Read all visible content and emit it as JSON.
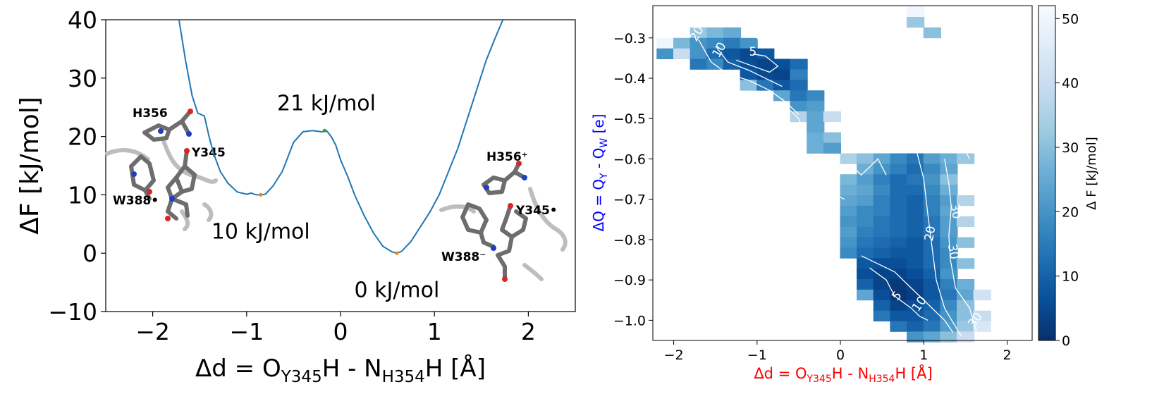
{
  "chart_data": [
    {
      "type": "line",
      "xlabel": {
        "main": "Δd = O",
        "sub1": "Y345",
        "mid": "H - N",
        "sub2": "H354",
        "end": "H [Å]"
      },
      "ylabel": "ΔF [kJ/mol]",
      "xlim": [
        -2.5,
        2.5
      ],
      "ylim": [
        -10,
        40
      ],
      "xticks": [
        -2,
        -1,
        0,
        1,
        2
      ],
      "yticks": [
        -10,
        0,
        10,
        20,
        30,
        40
      ],
      "xtick_labels": [
        "−2",
        "−1",
        "0",
        "1",
        "2"
      ],
      "ytick_labels": [
        "−10",
        "0",
        "10",
        "20",
        "30",
        "40"
      ],
      "line_color": "#1f77b4",
      "x": [
        -1.72,
        -1.65,
        -1.58,
        -1.52,
        -1.45,
        -1.4,
        -1.35,
        -1.28,
        -1.2,
        -1.1,
        -1.0,
        -0.95,
        -0.9,
        -0.85,
        -0.8,
        -0.72,
        -0.62,
        -0.5,
        -0.4,
        -0.3,
        -0.2,
        -0.15,
        -0.1,
        -0.05,
        0.0,
        0.08,
        0.15,
        0.25,
        0.35,
        0.45,
        0.55,
        0.6,
        0.65,
        0.75,
        0.85,
        0.95,
        1.05,
        1.15,
        1.25,
        1.35,
        1.45,
        1.55,
        1.65,
        1.73
      ],
      "y": [
        40,
        33,
        27,
        24,
        23.5,
        20,
        17,
        14,
        12,
        10.5,
        10.1,
        10.3,
        10.0,
        10.0,
        10.1,
        11.5,
        14,
        19,
        20.8,
        21,
        20.8,
        21.0,
        20,
        18.5,
        16,
        13,
        10,
        6.5,
        3.5,
        1.2,
        0.2,
        0.0,
        0.3,
        2,
        4.5,
        7,
        10,
        14,
        18,
        23,
        28,
        33,
        37,
        40
      ],
      "markers": [
        {
          "x": -0.85,
          "y": 10.0,
          "color": "#ff7f0e"
        },
        {
          "x": 0.6,
          "y": 0.0,
          "color": "#ff7f0e"
        },
        {
          "x": -0.17,
          "y": 21.0,
          "color": "#2ca02c"
        }
      ],
      "annotations": [
        {
          "text": "21 kJ/mol",
          "x": -0.15,
          "y": 24.5
        },
        {
          "text": "10 kJ/mol",
          "x": -0.85,
          "y": 2.5
        },
        {
          "text": "0 kJ/mol",
          "x": 0.6,
          "y": -7.5
        }
      ],
      "inset_labels": {
        "left": [
          "H356",
          "Y345",
          "W388•"
        ],
        "right": [
          "H356⁺",
          "Y345•",
          "W388⁻"
        ]
      }
    },
    {
      "type": "heatmap",
      "colormap": "Blues_r",
      "xlabel": {
        "main": "Δd =  O",
        "sub1": "Y345",
        "mid": "H - N",
        "sub2": "H354",
        "end": "H [Å]",
        "color": "#ff0000"
      },
      "ylabel": {
        "main": "ΔQ = Q",
        "sub1": "Y",
        "mid": " - Q",
        "sub2": "W",
        "end": " [e]",
        "color": "#0000ff"
      },
      "xlim": [
        -2.25,
        2.3
      ],
      "ylim": [
        -1.05,
        -0.22
      ],
      "xticks": [
        -2,
        -1,
        0,
        1,
        2
      ],
      "yticks": [
        -1.0,
        -0.9,
        -0.8,
        -0.7,
        -0.6,
        -0.5,
        -0.4,
        -0.3
      ],
      "xtick_labels": [
        "−2",
        "−1",
        "0",
        "1",
        "2"
      ],
      "ytick_labels": [
        "−1.0",
        "−0.9",
        "−0.8",
        "−0.7",
        "−0.6",
        "−0.5",
        "−0.4",
        "−0.3"
      ],
      "colorbar_label": "Δ F [kJ/mol]",
      "colorbar_ticks": [
        0,
        10,
        20,
        30,
        40,
        50
      ],
      "vmin": 0,
      "vmax": 52,
      "cell_size": [
        0.21,
        0.026
      ],
      "cells": [
        {
          "row": -0.235,
          "x": [
            0.9
          ],
          "v": [
            50
          ]
        },
        {
          "row": -0.261,
          "x": [
            0.9
          ],
          "v": [
            32
          ]
        },
        {
          "row": -0.287,
          "x": [
            1.1
          ],
          "v": [
            30
          ]
        },
        {
          "row": -0.287,
          "x": [
            -1.7,
            -1.5,
            -1.3
          ],
          "v": [
            32,
            28,
            25
          ]
        },
        {
          "row": -0.313,
          "x": [
            -2.1,
            -1.9,
            -1.7,
            -1.5,
            -1.3,
            -1.1
          ],
          "v": [
            50,
            28,
            20,
            18,
            15,
            20
          ]
        },
        {
          "row": -0.339,
          "x": [
            -2.1,
            -1.9,
            -1.7,
            -1.5,
            -1.3,
            -1.1,
            -0.9
          ],
          "v": [
            20,
            40,
            20,
            12,
            8,
            5,
            8
          ]
        },
        {
          "row": -0.365,
          "x": [
            -1.7,
            -1.5,
            -1.3,
            -1.1,
            -0.9,
            -0.7,
            -0.5
          ],
          "v": [
            14,
            18,
            10,
            6,
            4,
            6,
            12
          ]
        },
        {
          "row": -0.391,
          "x": [
            -1.1,
            -0.9,
            -0.7,
            -0.5
          ],
          "v": [
            8,
            5,
            4,
            16
          ]
        },
        {
          "row": -0.417,
          "x": [
            -1.1,
            -0.9,
            -0.7,
            -0.5
          ],
          "v": [
            30,
            14,
            8,
            12
          ]
        },
        {
          "row": -0.443,
          "x": [
            -0.7,
            -0.5,
            -0.3
          ],
          "v": [
            24,
            14,
            18
          ]
        },
        {
          "row": -0.469,
          "x": [
            -0.5,
            -0.3
          ],
          "v": [
            20,
            22
          ]
        },
        {
          "row": -0.495,
          "x": [
            -0.5,
            -0.3,
            -0.1
          ],
          "v": [
            36,
            24,
            40
          ]
        },
        {
          "row": -0.521,
          "x": [
            -0.3
          ],
          "v": [
            24
          ]
        },
        {
          "row": -0.547,
          "x": [
            -0.3,
            -0.1
          ],
          "v": [
            26,
            30
          ]
        },
        {
          "row": -0.573,
          "x": [
            -0.3,
            -0.1
          ],
          "v": [
            26,
            22
          ]
        },
        {
          "row": -0.599,
          "x": [
            0.1,
            0.3,
            0.5,
            0.7,
            0.9,
            1.1,
            1.3,
            1.5
          ],
          "v": [
            35,
            30,
            24,
            18,
            14,
            22,
            26,
            32
          ]
        },
        {
          "row": -0.625,
          "x": [
            0.3,
            0.5,
            0.7,
            0.9,
            1.1,
            1.3
          ],
          "v": [
            26,
            20,
            16,
            12,
            18,
            24
          ]
        },
        {
          "row": -0.651,
          "x": [
            0.1,
            0.3,
            0.5,
            0.7,
            0.9,
            1.1,
            1.3
          ],
          "v": [
            28,
            22,
            16,
            12,
            14,
            20,
            30
          ]
        },
        {
          "row": -0.677,
          "x": [
            0.1,
            0.3,
            0.5,
            0.7,
            0.9,
            1.1,
            1.3
          ],
          "v": [
            26,
            24,
            18,
            12,
            12,
            18,
            26
          ]
        },
        {
          "row": -0.703,
          "x": [
            0.1,
            0.3,
            0.5,
            0.7,
            0.9,
            1.1,
            1.3,
            1.5
          ],
          "v": [
            24,
            22,
            16,
            12,
            10,
            16,
            22,
            36
          ]
        },
        {
          "row": -0.729,
          "x": [
            0.1,
            0.3,
            0.5,
            0.7,
            0.9,
            1.1,
            1.3
          ],
          "v": [
            22,
            18,
            16,
            12,
            10,
            16,
            24
          ]
        },
        {
          "row": -0.755,
          "x": [
            0.1,
            0.3,
            0.5,
            0.7,
            0.9,
            1.1,
            1.3,
            1.5
          ],
          "v": [
            20,
            18,
            14,
            12,
            10,
            14,
            22,
            36
          ]
        },
        {
          "row": -0.781,
          "x": [
            0.1,
            0.3,
            0.5,
            0.7,
            0.9,
            1.1,
            1.3
          ],
          "v": [
            22,
            16,
            14,
            12,
            10,
            14,
            22
          ]
        },
        {
          "row": -0.807,
          "x": [
            0.1,
            0.3,
            0.5,
            0.7,
            0.9,
            1.1,
            1.3,
            1.5
          ],
          "v": [
            20,
            14,
            12,
            10,
            8,
            12,
            20,
            30
          ]
        },
        {
          "row": -0.833,
          "x": [
            0.1,
            0.3,
            0.5,
            0.7,
            0.9,
            1.1,
            1.3
          ],
          "v": [
            18,
            12,
            10,
            8,
            8,
            12,
            18
          ]
        },
        {
          "row": -0.859,
          "x": [
            0.3,
            0.5,
            0.7,
            0.9,
            1.1,
            1.3,
            1.5
          ],
          "v": [
            8,
            6,
            6,
            8,
            12,
            18,
            30
          ]
        },
        {
          "row": -0.885,
          "x": [
            0.3,
            0.5,
            0.7,
            0.9,
            1.1,
            1.3
          ],
          "v": [
            6,
            4,
            4,
            6,
            10,
            20
          ]
        },
        {
          "row": -0.911,
          "x": [
            0.3,
            0.5,
            0.7,
            0.9,
            1.1,
            1.3,
            1.5
          ],
          "v": [
            10,
            4,
            2,
            4,
            8,
            16,
            26
          ]
        },
        {
          "row": -0.937,
          "x": [
            0.3,
            0.5,
            0.7,
            0.9,
            1.1,
            1.3,
            1.5,
            1.7
          ],
          "v": [
            24,
            6,
            1,
            3,
            8,
            14,
            24,
            42
          ]
        },
        {
          "row": -0.963,
          "x": [
            0.5,
            0.7,
            0.9,
            1.1,
            1.3,
            1.5
          ],
          "v": [
            10,
            4,
            6,
            10,
            18,
            30
          ]
        },
        {
          "row": -0.989,
          "x": [
            0.5,
            0.7,
            0.9,
            1.1,
            1.3,
            1.5,
            1.7
          ],
          "v": [
            14,
            8,
            8,
            12,
            20,
            30,
            40
          ]
        },
        {
          "row": -1.015,
          "x": [
            0.7,
            0.9,
            1.1,
            1.3,
            1.5,
            1.7
          ],
          "v": [
            14,
            10,
            14,
            22,
            32,
            44
          ]
        },
        {
          "row": -1.041,
          "x": [
            0.9,
            1.1,
            1.3,
            1.5
          ],
          "v": [
            20,
            24,
            30,
            40
          ]
        }
      ],
      "contour_labels": [
        {
          "text": "20",
          "x": -1.72,
          "y": -0.29,
          "rot": -60
        },
        {
          "text": "10",
          "x": -1.45,
          "y": -0.33,
          "rot": -60
        },
        {
          "text": "5",
          "x": -1.05,
          "y": -0.335,
          "rot": 0
        },
        {
          "text": "30",
          "x": 1.38,
          "y": -0.73,
          "rot": 80
        },
        {
          "text": "20",
          "x": 1.08,
          "y": -0.785,
          "rot": -80
        },
        {
          "text": "30",
          "x": 1.35,
          "y": -0.83,
          "rot": 80
        },
        {
          "text": "5",
          "x": 0.68,
          "y": -0.94,
          "rot": -50
        },
        {
          "text": "10",
          "x": 0.95,
          "y": -0.96,
          "rot": -55
        },
        {
          "text": "30",
          "x": 1.62,
          "y": -1.0,
          "rot": -55
        }
      ],
      "contours": [
        [
          [
            -1.7,
            -0.305
          ],
          [
            -1.55,
            -0.36
          ],
          [
            -1.35,
            -0.39
          ],
          [
            -1.1,
            -0.405
          ],
          [
            -0.85,
            -0.43
          ],
          [
            -0.65,
            -0.46
          ],
          [
            -0.5,
            -0.49
          ]
        ],
        [
          [
            -1.5,
            -0.32
          ],
          [
            -1.35,
            -0.36
          ],
          [
            -1.1,
            -0.38
          ],
          [
            -0.85,
            -0.405
          ],
          [
            -0.7,
            -0.42
          ]
        ],
        [
          [
            -1.25,
            -0.355
          ],
          [
            -1.05,
            -0.37
          ],
          [
            -0.85,
            -0.385
          ],
          [
            -0.75,
            -0.37
          ],
          [
            -0.9,
            -0.345
          ],
          [
            -1.05,
            -0.34
          ]
        ],
        [
          [
            0.35,
            -0.87
          ],
          [
            0.55,
            -0.9
          ],
          [
            0.65,
            -0.94
          ],
          [
            0.85,
            -0.97
          ],
          [
            0.95,
            -0.99
          ],
          [
            1.05,
            -1.0
          ]
        ],
        [
          [
            0.25,
            -0.84
          ],
          [
            0.45,
            -0.86
          ],
          [
            0.65,
            -0.88
          ],
          [
            0.85,
            -0.92
          ],
          [
            1.05,
            -0.96
          ],
          [
            1.25,
            -1.0
          ],
          [
            1.35,
            -1.03
          ]
        ],
        [
          [
            0.85,
            -0.48
          ],
          [
            0.9,
            -0.57
          ],
          [
            1.0,
            -0.65
          ],
          [
            1.05,
            -0.74
          ],
          [
            1.1,
            -0.82
          ],
          [
            1.15,
            -0.9
          ],
          [
            1.25,
            -0.97
          ],
          [
            1.45,
            -1.04
          ]
        ],
        [
          [
            1.25,
            -0.6
          ],
          [
            1.3,
            -0.66
          ],
          [
            1.33,
            -0.72
          ],
          [
            1.3,
            -0.79
          ],
          [
            1.32,
            -0.85
          ],
          [
            1.38,
            -0.92
          ],
          [
            1.55,
            -0.97
          ],
          [
            1.65,
            -1.04
          ]
        ],
        [
          [
            0.15,
            -0.62
          ],
          [
            0.25,
            -0.64
          ],
          [
            0.35,
            -0.62
          ],
          [
            0.45,
            -0.6
          ],
          [
            0.55,
            -0.64
          ]
        ],
        [
          [
            0.35,
            -0.47
          ],
          [
            0.45,
            -0.5
          ],
          [
            0.62,
            -0.48
          ],
          [
            0.7,
            -0.5
          ]
        ],
        [
          [
            -0.7,
            -0.45
          ],
          [
            -0.6,
            -0.48
          ],
          [
            -0.5,
            -0.5
          ],
          [
            -0.45,
            -0.53
          ]
        ],
        [
          [
            -1.15,
            -0.29
          ],
          [
            -1.0,
            -0.3
          ],
          [
            -0.95,
            -0.31
          ]
        ],
        [
          [
            -0.25,
            -0.7
          ],
          [
            -0.05,
            -0.69
          ],
          [
            0.05,
            -0.7
          ]
        ],
        [
          [
            1.5,
            -0.58
          ],
          [
            1.55,
            -0.6
          ]
        ],
        [
          [
            1.58,
            -0.64
          ],
          [
            1.65,
            -0.69
          ]
        ]
      ]
    }
  ]
}
